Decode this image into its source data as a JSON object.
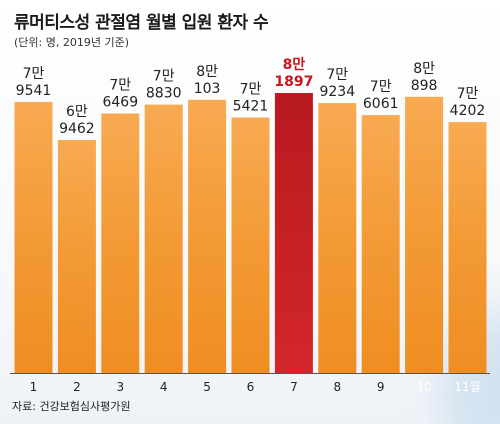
{
  "chart_data": {
    "type": "bar",
    "title": "류머티스성 관절염 월별 입원 환자 수",
    "subtitle": "(단위: 명, 2019년 기준)",
    "source": "자료: 건강보험심사평가원",
    "categories": [
      "1",
      "2",
      "3",
      "4",
      "5",
      "6",
      "7",
      "8",
      "9",
      "10",
      "11월"
    ],
    "values": [
      79541,
      69462,
      76469,
      78830,
      80103,
      75421,
      81897,
      79234,
      76061,
      80898,
      74202
    ],
    "value_labels": [
      [
        "7만",
        "9541"
      ],
      [
        "6만",
        "9462"
      ],
      [
        "7만",
        "6469"
      ],
      [
        "7만",
        "8830"
      ],
      [
        "8만",
        "103"
      ],
      [
        "7만",
        "5421"
      ],
      [
        "8만",
        "1897"
      ],
      [
        "7만",
        "9234"
      ],
      [
        "7만",
        "6061"
      ],
      [
        "8만",
        "898"
      ],
      [
        "7만",
        "4202"
      ]
    ],
    "highlight_index": 6,
    "colors": {
      "bar_top": "#f8aa52",
      "bar_mid": "#f39a35",
      "bar_bottom": "#ef8d22",
      "highlight_top": "#b81a1f",
      "highlight_bottom": "#d2262b",
      "highlight_label": "#c8161d",
      "baseline": "#555555"
    },
    "ylim": [
      0,
      82000
    ],
    "grid": false,
    "legend": "none"
  }
}
